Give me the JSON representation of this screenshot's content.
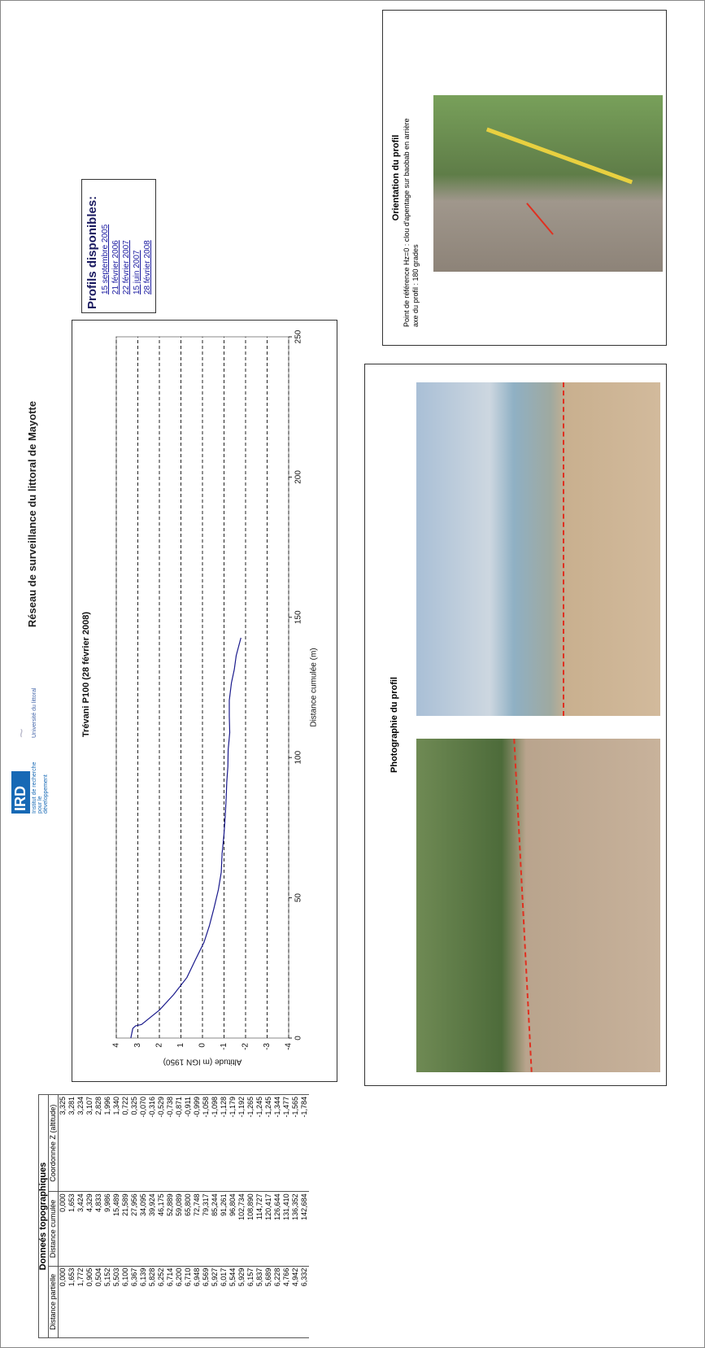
{
  "header": {
    "title": "Réseau de surveillance du littoral de Mayotte",
    "logo_ird": "IRD",
    "logo_ird_sub": "Institut de recherche pour le développement",
    "logo_univ": "Université du littoral"
  },
  "table": {
    "title": "Donneés topographiques",
    "columns": [
      "Distance partielle",
      "Distance cumulée",
      "Coordonnée Z (altitude)"
    ],
    "rows": [
      [
        "0,000",
        "0,000",
        "3,325"
      ],
      [
        "1,653",
        "1,653",
        "3,281"
      ],
      [
        "1,772",
        "3,424",
        "3,234"
      ],
      [
        "0,905",
        "4,329",
        "3,107"
      ],
      [
        "0,504",
        "4,833",
        "2,828"
      ],
      [
        "5,152",
        "9,986",
        "1,996"
      ],
      [
        "5,503",
        "15,489",
        "1,340"
      ],
      [
        "6,100",
        "21,589",
        "0,722"
      ],
      [
        "6,367",
        "27,956",
        "0,325"
      ],
      [
        "6,139",
        "34,095",
        "-0,070"
      ],
      [
        "5,828",
        "39,924",
        "-0,316"
      ],
      [
        "6,252",
        "46,175",
        "-0,529"
      ],
      [
        "6,714",
        "52,889",
        "-0,738"
      ],
      [
        "6,200",
        "59,089",
        "-0,871"
      ],
      [
        "6,710",
        "65,800",
        "-0,911"
      ],
      [
        "6,948",
        "72,748",
        "-0,999"
      ],
      [
        "6,569",
        "79,317",
        "-1,058"
      ],
      [
        "5,927",
        "85,244",
        "-1,098"
      ],
      [
        "6,017",
        "91,261",
        "-1,128"
      ],
      [
        "5,544",
        "96,804",
        "-1,179"
      ],
      [
        "5,929",
        "102,734",
        "-1,192"
      ],
      [
        "6,157",
        "108,890",
        "-1,265"
      ],
      [
        "5,837",
        "114,727",
        "-1,245"
      ],
      [
        "5,689",
        "120,417",
        "-1,245"
      ],
      [
        "6,228",
        "126,644",
        "-1,344"
      ],
      [
        "4,766",
        "131,410",
        "-1,477"
      ],
      [
        "4,942",
        "136,352",
        "-1,565"
      ],
      [
        "6,332",
        "142,684",
        "-1,784"
      ]
    ]
  },
  "chart_data": {
    "type": "line",
    "title": "Trévani P100 (28 février 2008)",
    "x_label": "Distance cumulée (m)",
    "y_label": "Altitude (m IGN 1950)",
    "x": [
      0,
      1.653,
      3.424,
      4.329,
      4.833,
      9.986,
      15.489,
      21.589,
      27.956,
      34.095,
      39.924,
      46.175,
      52.889,
      59.089,
      65.8,
      72.748,
      79.317,
      85.244,
      91.261,
      96.804,
      102.734,
      108.89,
      114.727,
      120.417,
      126.644,
      131.41,
      136.352,
      142.684
    ],
    "values": [
      3.325,
      3.281,
      3.234,
      3.107,
      2.828,
      1.996,
      1.34,
      0.722,
      0.325,
      -0.07,
      -0.316,
      -0.529,
      -0.738,
      -0.871,
      -0.911,
      -0.999,
      -1.058,
      -1.098,
      -1.128,
      -1.179,
      -1.192,
      -1.265,
      -1.245,
      -1.245,
      -1.344,
      -1.477,
      -1.565,
      -1.784
    ],
    "color": "#1a1a8c",
    "xlim": [
      0,
      250
    ],
    "xticks": [
      0,
      50,
      100,
      150,
      200,
      250
    ],
    "ylim": [
      -4,
      4
    ],
    "yticks": [
      -4,
      -3,
      -2,
      -1,
      0,
      1,
      2,
      3,
      4
    ],
    "grid": true
  },
  "profiles": {
    "title": "Profils disponibles:",
    "links": [
      "15 septembre 2005",
      "21 février 2006",
      "22 février 2007",
      "15 juin 2007",
      "28 février 2008"
    ]
  },
  "orientation": {
    "title": "Orientation du profil",
    "lines": [
      "Point de référence Hz=0 : clou d'apentage sur baobab en arrière",
      "axe du profil : 180 grades"
    ]
  },
  "photography": {
    "title": "Photographie du profil"
  }
}
